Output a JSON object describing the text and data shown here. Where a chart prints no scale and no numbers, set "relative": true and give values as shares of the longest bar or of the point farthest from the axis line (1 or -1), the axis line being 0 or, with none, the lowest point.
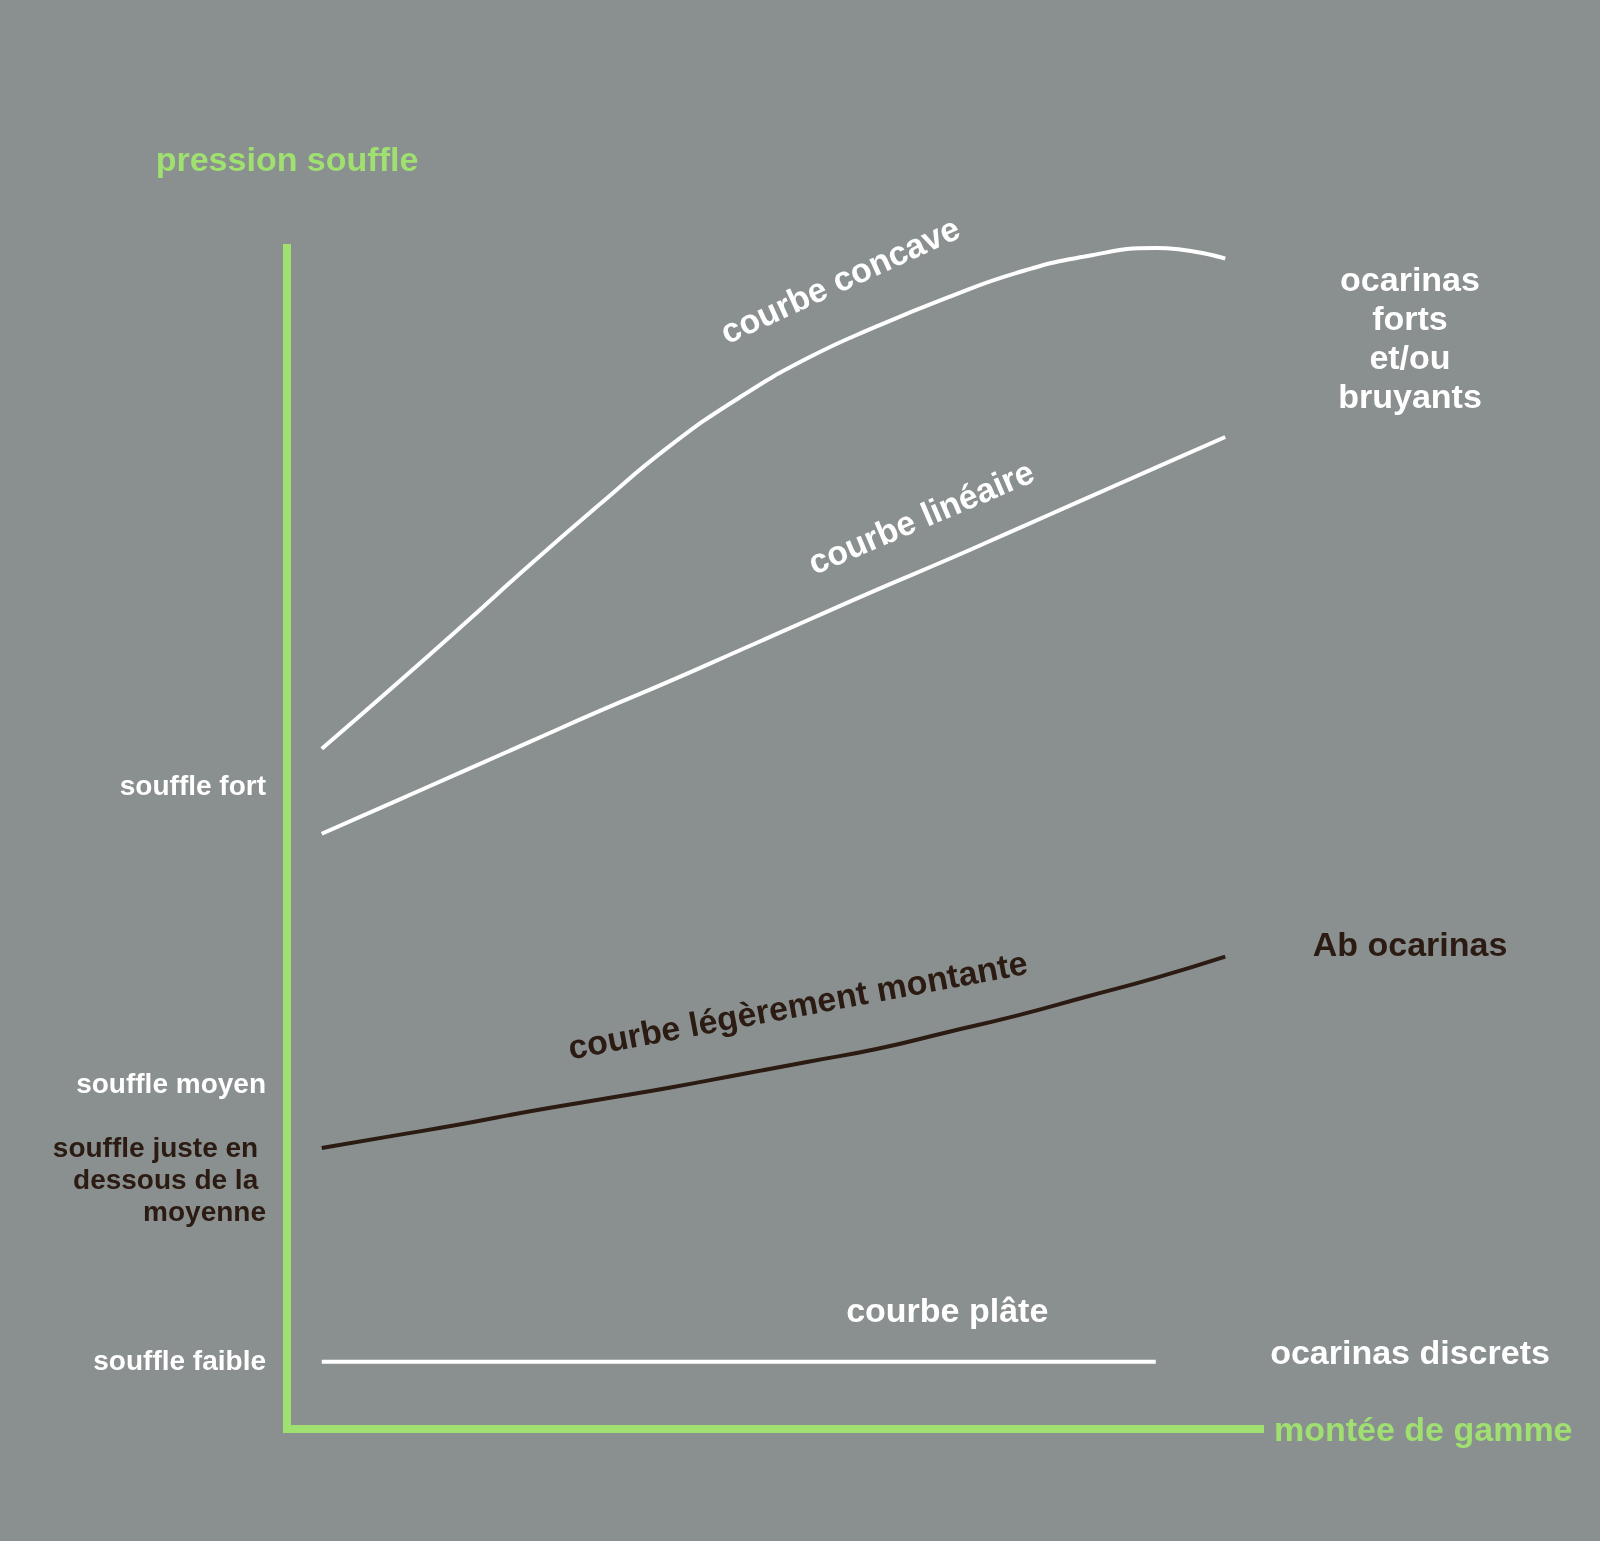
{
  "chart_data": {
    "type": "line",
    "relative": true,
    "xlabel": "montée de gamme",
    "ylabel": "pression souffle",
    "categories": [
      null,
      null,
      null,
      null,
      null,
      null,
      null,
      null,
      null,
      null,
      null,
      null,
      null,
      null
    ],
    "series": [
      {
        "name": "courbe concave",
        "color": "#ffffff",
        "values": [
          0.576,
          0.627,
          0.679,
          0.732,
          0.783,
          0.832,
          0.873,
          0.907,
          0.934,
          0.958,
          0.979,
          0.993,
          1,
          0.991
        ]
      },
      {
        "name": "courbe linéaire",
        "color": "#ffffff",
        "values": [
          0.504,
          0.53,
          0.556,
          0.582,
          0.608,
          0.633,
          0.659,
          0.685,
          0.711,
          0.736,
          0.762,
          0.788,
          0.814,
          0.84
        ]
      },
      {
        "name": "courbe légèrement montante",
        "color": "#2b1b12",
        "values": [
          0.238,
          0.248,
          0.258,
          0.269,
          0.279,
          0.289,
          0.3,
          0.311,
          0.322,
          0.336,
          0.35,
          0.366,
          0.382,
          0.4
        ]
      },
      {
        "name": "courbe plâte",
        "color": "#ffffff",
        "values": [
          0.057,
          0.057,
          0.057,
          0.057,
          0.057,
          0.057,
          0.057,
          0.057,
          0.057,
          0.057,
          0.057,
          0.057,
          0.057,
          null
        ]
      }
    ],
    "annotations": [
      "ocarinas forts et/ou bruyants",
      "souffle fort",
      "Ab ocarinas",
      "souffle moyen",
      "souffle juste en dessous de la moyenne",
      "souffle faible",
      "ocarinas discrets"
    ],
    "marker": "none"
  }
}
